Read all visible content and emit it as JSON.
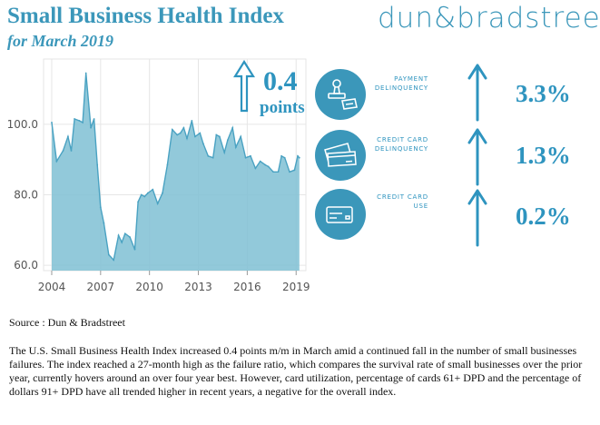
{
  "header": {
    "title": "Small Business Health Index",
    "subtitle": "for March 2019",
    "brand": "dun&bradstreet"
  },
  "headline": {
    "change": "0.4",
    "unit": "points",
    "direction": "up"
  },
  "metrics": [
    {
      "label": "PAYMENT\nDELINQUENCY",
      "value": "3.3%",
      "direction": "up",
      "icon": "stamp-icon"
    },
    {
      "label": "CREDIT CARD\nDELINQUENCY",
      "value": "1.3%",
      "direction": "up",
      "icon": "credit-cards-icon"
    },
    {
      "label": "CREDIT CARD\nUSE",
      "value": "0.2%",
      "direction": "up",
      "icon": "credit-card-icon"
    }
  ],
  "source": "Source : Dun & Bradstreet",
  "body": "The U.S. Small Business Health Index increased 0.4 points m/m in March amid a continued fall in the number of small businesses failures. The index reached a 27-month high as the failure ratio, which compares the survival rate of small businesses over the prior year, currently hovers around an over four year best. However, card utilization, percentage of cards 61+ DPD and the percentage of dollars 91+ DPD have all trended higher in recent years, a negative for the overall index.",
  "colors": {
    "accent": "#3b97ba",
    "area_fill": "#7fbfd4",
    "area_stroke": "#4aa2c2",
    "grid": "#e6e6e6"
  },
  "chart_data": {
    "type": "area",
    "title": "",
    "xlabel": "",
    "ylabel": "",
    "xlim": [
      2003.5,
      2019.6
    ],
    "ylim": [
      58.5,
      118.5
    ],
    "yticks": [
      60,
      80,
      100
    ],
    "ytick_labels": [
      "60.0",
      "80.0",
      "100.0"
    ],
    "xticks": [
      2004,
      2007,
      2010,
      2013,
      2016,
      2019
    ],
    "xtick_labels": [
      "2004",
      "2007",
      "2010",
      "2013",
      "2016",
      "2019"
    ],
    "grid": true,
    "series": [
      {
        "x": [
          2004.0,
          2004.3,
          2004.7,
          2005.0,
          2005.2,
          2005.4,
          2005.7,
          2005.9,
          2006.1,
          2006.4,
          2006.6,
          2006.8,
          2007.0,
          2007.2,
          2007.5,
          2007.8,
          2008.1,
          2008.3,
          2008.5,
          2008.8,
          2009.1,
          2009.3,
          2009.5,
          2009.7,
          2009.9,
          2010.2,
          2010.5,
          2010.8,
          2011.1,
          2011.4,
          2011.7,
          2011.9,
          2012.1,
          2012.3,
          2012.6,
          2012.8,
          2013.1,
          2013.3,
          2013.6,
          2013.9,
          2014.1,
          2014.3,
          2014.6,
          2014.8,
          2015.1,
          2015.3,
          2015.6,
          2015.9,
          2016.2,
          2016.5,
          2016.8,
          2017.1,
          2017.3,
          2017.6,
          2017.9,
          2018.1,
          2018.3,
          2018.6,
          2018.9,
          2019.1,
          2019.2
        ],
        "y": [
          100.5,
          89.5,
          92.5,
          96.5,
          92.5,
          101.5,
          101.0,
          100.5,
          114.5,
          99.0,
          101.5,
          88.5,
          76.5,
          72.0,
          63.0,
          61.5,
          68.5,
          66.5,
          69.0,
          68.0,
          64.5,
          78.0,
          80.0,
          79.5,
          80.5,
          81.5,
          77.5,
          80.5,
          88.5,
          98.5,
          97.0,
          97.5,
          99.0,
          96.0,
          101.0,
          96.5,
          97.5,
          94.5,
          91.0,
          90.5,
          97.0,
          96.5,
          92.0,
          95.5,
          99.0,
          93.5,
          96.5,
          90.5,
          91.0,
          87.5,
          89.5,
          88.5,
          88.0,
          86.5,
          86.5,
          91.0,
          90.5,
          86.5,
          87.0,
          91.0,
          90.5
        ]
      }
    ]
  }
}
